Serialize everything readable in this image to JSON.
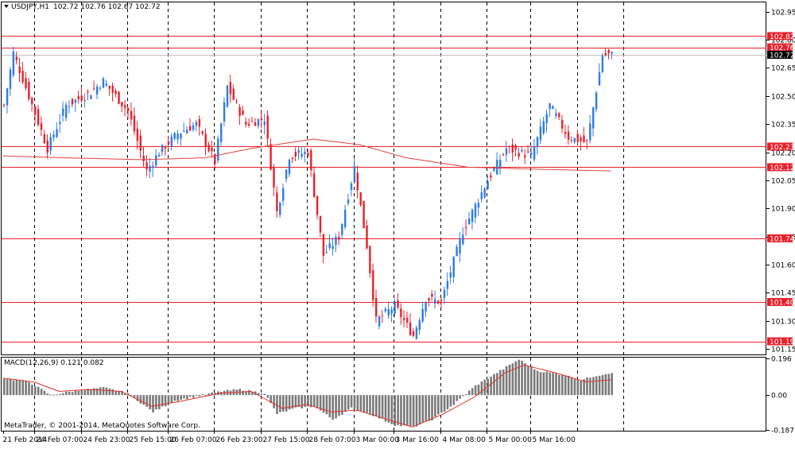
{
  "header": {
    "symbol": "USDJPY,H1",
    "ohlc": "102.72 102.76 102.67 102.72"
  },
  "macd_header": {
    "label": "MACD(12,26,9) 0.121 0.082"
  },
  "copyright": "MetaTrader, © 2001-2014, MetaQuotes Software Corp.",
  "colors": {
    "bull": "#2E7BE6",
    "bear": "#E8202A",
    "level_line": "#E8202A",
    "ma": "#E04040",
    "macd_hist": "#7A7A7A",
    "macd_signal": "#E03030",
    "grid": "#000000",
    "price_label_bg": "#E8202A",
    "current_label_bg": "#000000"
  },
  "chart_data": [
    {
      "type": "candlestick",
      "symbol": "USDJPY",
      "timeframe": "H1",
      "ylim": [
        101.12,
        103.0
      ],
      "y_ticks": [
        "102.95",
        "102.80",
        "102.65",
        "102.50",
        "102.35",
        "102.20",
        "102.05",
        "101.90",
        "101.75",
        "101.60",
        "101.45",
        "101.30",
        "101.15"
      ],
      "x_tick_labels": [
        "21 Feb 2014",
        "24 Feb 07:00",
        "24 Feb 23:00",
        "25 Feb 15:00",
        "26 Feb 07:00",
        "26 Feb 23:00",
        "27 Feb 15:00",
        "28 Feb 07:00",
        "3 Mar 00:00",
        "3 Mar 16:00",
        "4 Mar 08:00",
        "5 Mar 00:00",
        "5 Mar 16:00"
      ],
      "horizontal_levels": [
        {
          "label": "102.82",
          "value": 102.82
        },
        {
          "label": "102.76",
          "value": 102.76
        },
        {
          "label": "102.23",
          "value": 102.23
        },
        {
          "label": "102.12",
          "value": 102.12
        },
        {
          "label": "101.74",
          "value": 101.74
        },
        {
          "label": "101.40",
          "value": 101.4
        },
        {
          "label": "101.19",
          "value": 101.19
        }
      ],
      "current_price": {
        "label": "102.72",
        "value": 102.72
      },
      "day_separators_at_candle": [
        10,
        25,
        40,
        53,
        68,
        83,
        98,
        113,
        126,
        141,
        156,
        170,
        185,
        200
      ],
      "close_path": [
        {
          "i": 0,
          "p": 102.45
        },
        {
          "i": 3,
          "p": 102.73
        },
        {
          "i": 8,
          "p": 102.5
        },
        {
          "i": 14,
          "p": 102.22
        },
        {
          "i": 20,
          "p": 102.45
        },
        {
          "i": 28,
          "p": 102.52
        },
        {
          "i": 32,
          "p": 102.58
        },
        {
          "i": 40,
          "p": 102.42
        },
        {
          "i": 46,
          "p": 102.1
        },
        {
          "i": 50,
          "p": 102.2
        },
        {
          "i": 56,
          "p": 102.3
        },
        {
          "i": 62,
          "p": 102.35
        },
        {
          "i": 68,
          "p": 102.15
        },
        {
          "i": 72,
          "p": 102.55
        },
        {
          "i": 78,
          "p": 102.35
        },
        {
          "i": 84,
          "p": 102.38
        },
        {
          "i": 88,
          "p": 101.88
        },
        {
          "i": 92,
          "p": 102.18
        },
        {
          "i": 98,
          "p": 102.2
        },
        {
          "i": 103,
          "p": 101.65
        },
        {
          "i": 108,
          "p": 101.75
        },
        {
          "i": 113,
          "p": 102.12
        },
        {
          "i": 117,
          "p": 101.7
        },
        {
          "i": 120,
          "p": 101.3
        },
        {
          "i": 126,
          "p": 101.38
        },
        {
          "i": 132,
          "p": 101.22
        },
        {
          "i": 136,
          "p": 101.42
        },
        {
          "i": 141,
          "p": 101.4
        },
        {
          "i": 148,
          "p": 101.78
        },
        {
          "i": 156,
          "p": 102.05
        },
        {
          "i": 162,
          "p": 102.22
        },
        {
          "i": 170,
          "p": 102.18
        },
        {
          "i": 176,
          "p": 102.45
        },
        {
          "i": 182,
          "p": 102.28
        },
        {
          "i": 188,
          "p": 102.25
        },
        {
          "i": 193,
          "p": 102.72
        }
      ],
      "moving_average": [
        {
          "i": 0,
          "p": 102.18
        },
        {
          "i": 20,
          "p": 102.17
        },
        {
          "i": 45,
          "p": 102.16
        },
        {
          "i": 65,
          "p": 102.17
        },
        {
          "i": 80,
          "p": 102.22
        },
        {
          "i": 100,
          "p": 102.27
        },
        {
          "i": 115,
          "p": 102.24
        },
        {
          "i": 130,
          "p": 102.17
        },
        {
          "i": 150,
          "p": 102.12
        },
        {
          "i": 170,
          "p": 102.11
        },
        {
          "i": 196,
          "p": 102.1
        }
      ]
    },
    {
      "type": "bar",
      "indicator": "MACD(12,26,9)",
      "ylim": [
        -0.19,
        0.2
      ],
      "y_ticks": [
        "0.196",
        "0.00",
        "-0.187"
      ],
      "hist_path": [
        {
          "i": 0,
          "v": 0.09
        },
        {
          "i": 8,
          "v": 0.07
        },
        {
          "i": 15,
          "v": 0.0
        },
        {
          "i": 22,
          "v": 0.02
        },
        {
          "i": 32,
          "v": 0.04
        },
        {
          "i": 40,
          "v": 0.01
        },
        {
          "i": 48,
          "v": -0.09
        },
        {
          "i": 55,
          "v": -0.03
        },
        {
          "i": 64,
          "v": 0.0
        },
        {
          "i": 70,
          "v": 0.02
        },
        {
          "i": 76,
          "v": 0.03
        },
        {
          "i": 84,
          "v": 0.01
        },
        {
          "i": 88,
          "v": -0.1
        },
        {
          "i": 94,
          "v": -0.07
        },
        {
          "i": 100,
          "v": -0.06
        },
        {
          "i": 106,
          "v": -0.13
        },
        {
          "i": 112,
          "v": -0.07
        },
        {
          "i": 118,
          "v": -0.1
        },
        {
          "i": 126,
          "v": -0.16
        },
        {
          "i": 132,
          "v": -0.17
        },
        {
          "i": 138,
          "v": -0.13
        },
        {
          "i": 145,
          "v": -0.05
        },
        {
          "i": 152,
          "v": 0.05
        },
        {
          "i": 160,
          "v": 0.13
        },
        {
          "i": 166,
          "v": 0.19
        },
        {
          "i": 172,
          "v": 0.13
        },
        {
          "i": 180,
          "v": 0.11
        },
        {
          "i": 186,
          "v": 0.08
        },
        {
          "i": 190,
          "v": 0.1
        },
        {
          "i": 196,
          "v": 0.121
        }
      ],
      "signal_path": [
        {
          "i": 0,
          "v": 0.09
        },
        {
          "i": 10,
          "v": 0.07
        },
        {
          "i": 18,
          "v": 0.02
        },
        {
          "i": 28,
          "v": 0.03
        },
        {
          "i": 38,
          "v": 0.02
        },
        {
          "i": 48,
          "v": -0.06
        },
        {
          "i": 58,
          "v": -0.03
        },
        {
          "i": 70,
          "v": 0.01
        },
        {
          "i": 80,
          "v": 0.02
        },
        {
          "i": 90,
          "v": -0.07
        },
        {
          "i": 98,
          "v": -0.05
        },
        {
          "i": 106,
          "v": -0.09
        },
        {
          "i": 114,
          "v": -0.08
        },
        {
          "i": 122,
          "v": -0.12
        },
        {
          "i": 132,
          "v": -0.17
        },
        {
          "i": 142,
          "v": -0.1
        },
        {
          "i": 152,
          "v": -0.01
        },
        {
          "i": 162,
          "v": 0.12
        },
        {
          "i": 168,
          "v": 0.16
        },
        {
          "i": 178,
          "v": 0.12
        },
        {
          "i": 188,
          "v": 0.07
        },
        {
          "i": 196,
          "v": 0.082
        }
      ]
    }
  ]
}
